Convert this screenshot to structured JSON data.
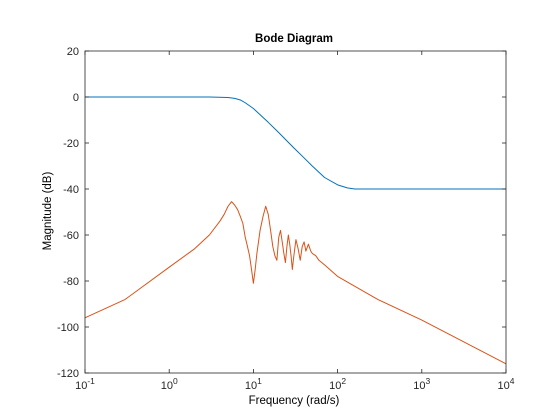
{
  "chart_data": {
    "type": "line",
    "title": "Bode Diagram",
    "xlabel": "Frequency  (rad/s)",
    "ylabel": "Magnitude (dB)",
    "xscale": "log",
    "xlim": [
      0.1,
      10000
    ],
    "ylim": [
      -120,
      20
    ],
    "grid": false,
    "x_ticks": [
      {
        "value": 0.1,
        "base": "10",
        "exp": "-1"
      },
      {
        "value": 1,
        "base": "10",
        "exp": "0"
      },
      {
        "value": 10,
        "base": "10",
        "exp": "1"
      },
      {
        "value": 100,
        "base": "10",
        "exp": "2"
      },
      {
        "value": 1000,
        "base": "10",
        "exp": "3"
      },
      {
        "value": 10000,
        "base": "10",
        "exp": "4"
      }
    ],
    "y_ticks": [
      {
        "value": 20,
        "label": "20"
      },
      {
        "value": 0,
        "label": "0"
      },
      {
        "value": -20,
        "label": "-20"
      },
      {
        "value": -40,
        "label": "-40"
      },
      {
        "value": -60,
        "label": "-60"
      },
      {
        "value": -80,
        "label": "-80"
      },
      {
        "value": -100,
        "label": "-100"
      },
      {
        "value": -120,
        "label": "-120"
      }
    ],
    "series": [
      {
        "color": "#0072bd",
        "x": [
          0.1,
          1,
          3,
          5,
          6,
          7,
          8,
          10,
          15,
          20,
          30,
          40,
          50,
          70,
          100,
          130,
          160,
          200,
          300,
          1000,
          10000
        ],
        "y": [
          0,
          0,
          0,
          -0.2,
          -0.6,
          -1.3,
          -2.5,
          -5,
          -11,
          -15.5,
          -22,
          -26.5,
          -30,
          -35,
          -38.2,
          -39.5,
          -40,
          -40,
          -40,
          -40,
          -40
        ]
      },
      {
        "color": "#d95319",
        "x": [
          0.1,
          0.3,
          1,
          2,
          3,
          4,
          4.5,
          5,
          5.5,
          6,
          6.5,
          7,
          7.5,
          8,
          8.5,
          9,
          9.5,
          10,
          10.5,
          11,
          12,
          13,
          14,
          15,
          16,
          17,
          18,
          19,
          20,
          21,
          22,
          23,
          24,
          25,
          26,
          27,
          28,
          29,
          30,
          32,
          34,
          36,
          38,
          40,
          42,
          45,
          48,
          50,
          55,
          60,
          70,
          100,
          300,
          1000,
          10000
        ],
        "y": [
          -96,
          -88,
          -74,
          -66,
          -60,
          -54,
          -51,
          -47.5,
          -45.5,
          -47,
          -49,
          -52,
          -55,
          -61,
          -65,
          -69,
          -75,
          -81,
          -75,
          -68,
          -58,
          -52,
          -47.5,
          -51,
          -58,
          -65,
          -69,
          -71,
          -61,
          -58,
          -63,
          -68,
          -72,
          -65,
          -60,
          -64,
          -69,
          -75,
          -70,
          -62,
          -66,
          -71,
          -65,
          -63,
          -67,
          -64,
          -67,
          -68,
          -69,
          -71,
          -73,
          -78,
          -88,
          -97,
          -116
        ]
      }
    ]
  }
}
